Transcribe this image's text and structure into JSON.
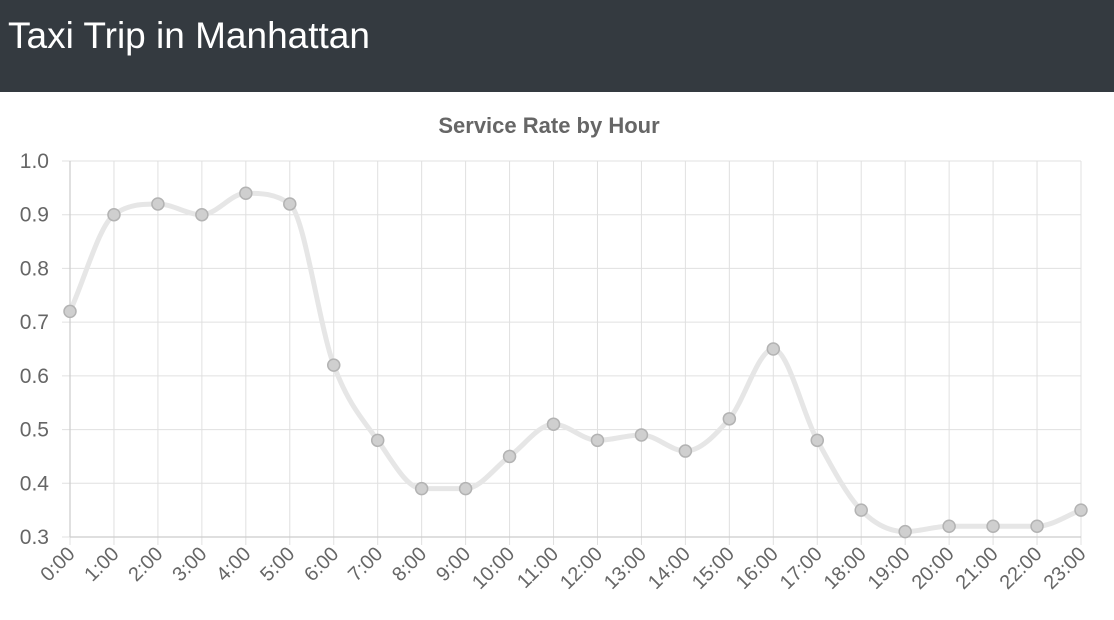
{
  "header": {
    "title": "Taxi Trip in Manhattan"
  },
  "chart_data": {
    "type": "line",
    "title": "Service Rate by Hour",
    "xlabel": "",
    "ylabel": "",
    "categories": [
      "0:00",
      "1:00",
      "2:00",
      "3:00",
      "4:00",
      "5:00",
      "6:00",
      "7:00",
      "8:00",
      "9:00",
      "10:00",
      "11:00",
      "12:00",
      "13:00",
      "14:00",
      "15:00",
      "16:00",
      "17:00",
      "18:00",
      "19:00",
      "20:00",
      "21:00",
      "22:00",
      "23:00"
    ],
    "series": [
      {
        "values": [
          0.72,
          0.9,
          0.92,
          0.9,
          0.94,
          0.92,
          0.62,
          0.48,
          0.39,
          0.39,
          0.45,
          0.51,
          0.48,
          0.49,
          0.46,
          0.52,
          0.65,
          0.48,
          0.35,
          0.31,
          0.32,
          0.32,
          0.32,
          0.35
        ]
      }
    ],
    "ylim": [
      0.3,
      1.0
    ],
    "yticks": [
      "0.3",
      "0.4",
      "0.5",
      "0.6",
      "0.7",
      "0.8",
      "0.9",
      "1.0"
    ],
    "grid": true,
    "legend": "none",
    "colors": {
      "line": "#e6e6e6",
      "point": "#cfcfcf"
    }
  }
}
